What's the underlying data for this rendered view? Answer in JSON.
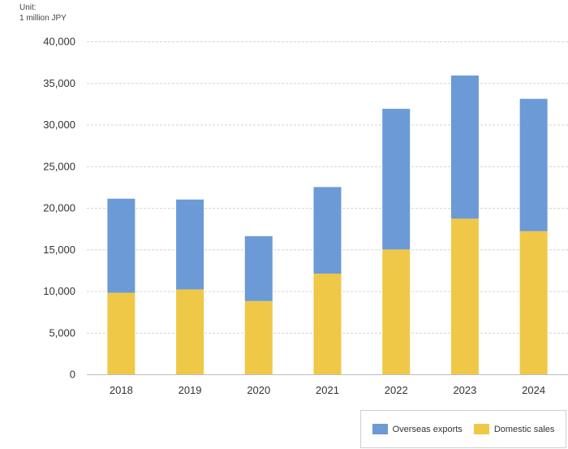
{
  "unit_label": {
    "line1": "Unit:",
    "line2": "1 million JPY"
  },
  "chart_data": {
    "type": "bar",
    "stacked": true,
    "categories": [
      "2018",
      "2019",
      "2020",
      "2021",
      "2022",
      "2023",
      "2024"
    ],
    "series": [
      {
        "name": "Domestic sales",
        "color": "#f0c847",
        "values": [
          9800,
          10200,
          8800,
          12100,
          15000,
          18700,
          17200
        ]
      },
      {
        "name": "Overseas exports",
        "color": "#6b9ad7",
        "values": [
          11300,
          10800,
          7800,
          10400,
          16900,
          17200,
          15900
        ]
      }
    ],
    "ylim": [
      0,
      40000
    ],
    "yticks": [
      0,
      5000,
      10000,
      15000,
      20000,
      25000,
      30000,
      35000,
      40000
    ],
    "grid": true,
    "legend_position": "bottom-right"
  },
  "legend": {
    "items": [
      {
        "label": "Overseas exports",
        "color": "#6b9ad7"
      },
      {
        "label": "Domestic sales",
        "color": "#f0c847"
      }
    ]
  }
}
